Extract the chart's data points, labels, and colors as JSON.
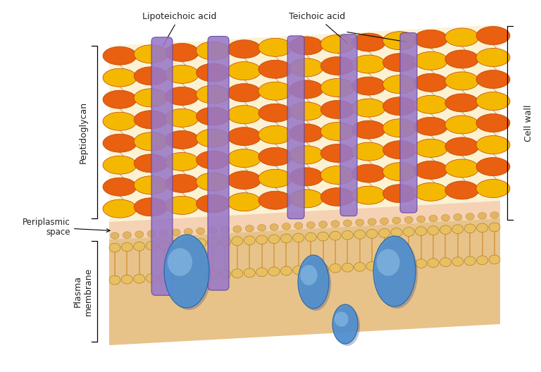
{
  "bg_color": "#ffffff",
  "fig_width": 7.68,
  "fig_height": 5.28,
  "dpi": 100,
  "bead_orange": "#E86010",
  "bead_yellow": "#F5B800",
  "bead_edge": "#C04000",
  "crosslink_color": "#444422",
  "periplasm_color": "#F5D0B0",
  "membrane_bg": "#E8A030",
  "membrane_head": "#E8C060",
  "membrane_edge": "#A07020",
  "membrane_tail": "#C88020",
  "teichoic_color": "#9878C8",
  "teichoic_edge": "#6040A0",
  "protein_fill": "#5090D0",
  "protein_edge": "#2060A0",
  "protein_hi": "#A0D0F0",
  "label_lipoteichoic": "Lipoteichoic acid",
  "label_teichoic": "Teichoic acid",
  "label_peptidoglycan": "Peptidoglycan",
  "label_periplasmic": "Periplasmic\nspace",
  "label_plasma": "Plasma\nmembrane",
  "label_cellwall": "Cell wall",
  "fs": 9
}
